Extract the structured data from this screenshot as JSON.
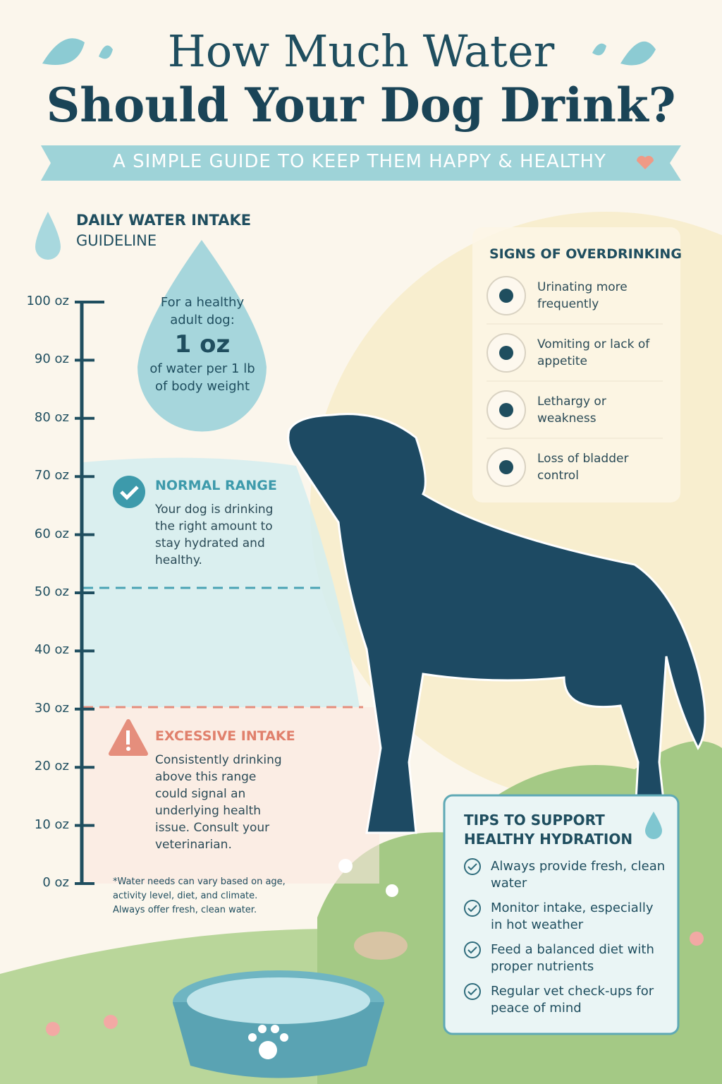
{
  "header": {
    "title_line1": "How Much Water",
    "title_line2": "Should Your Dog Drink?",
    "subtitle": "A SIMPLE GUIDE TO KEEP THEM HAPPY & HEALTHY"
  },
  "guideline": {
    "heading": "DAILY WATER INTAKE",
    "subheading": "GUIDELINE",
    "drop": {
      "intro": "For a healthy adult dog:",
      "amount": "1 oz",
      "detail": "of water per 1 lb of body weight"
    }
  },
  "scale": {
    "ticks": [
      "100 oz",
      "90 oz",
      "80 oz",
      "70 oz",
      "60 oz",
      "50 oz",
      "40 oz",
      "30 oz",
      "20 oz",
      "10 oz",
      "0 oz"
    ]
  },
  "normal_range": {
    "title": "NORMAL RANGE",
    "text": "Your dog is drinking the right amount to stay hydrated and healthy."
  },
  "excessive_intake": {
    "title": "EXCESSIVE INTAKE",
    "text": "Consistently drinking above this range could signal an underlying health issue. Consult your veterinarian."
  },
  "footnote": "*Water needs can vary based on age, activity level, diet, and climate. Always offer fresh, clean water.",
  "overdrinking": {
    "title": "SIGNS OF OVERDRINKING",
    "signs": [
      "Urinating more frequently",
      "Vomiting or lack of appetite",
      "Lethargy or weakness",
      "Loss of bladder control"
    ]
  },
  "tips": {
    "title": "TIPS TO SUPPORT HEALTHY HYDRATION",
    "items": [
      "Always provide fresh, clean water",
      "Monitor intake, especially in hot weather",
      "Feed a balanced diet with proper nutrients",
      "Regular vet check-ups for peace of mind"
    ]
  }
}
